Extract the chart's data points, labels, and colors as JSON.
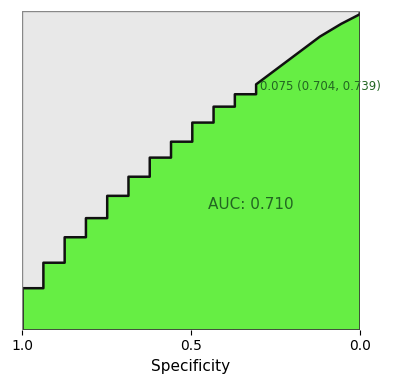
{
  "title": "",
  "xlabel": "Specificity",
  "ylabel": "",
  "auc": 0.71,
  "annotation_text": "0.075 (0.704, 0.739)",
  "auc_text": "AUC: 0.710",
  "roc_color": "#66ee44",
  "bg_color": "#e8e8e8",
  "outer_bg": "#ffffff",
  "line_color": "#111111",
  "grid_color_blue": "#9999dd",
  "grid_color_pink": "#ee9999",
  "text_color": "#226622",
  "xlim": [
    1.0,
    0.0
  ],
  "ylim": [
    0.0,
    1.0
  ],
  "xticks": [
    1.0,
    0.5,
    0.0
  ],
  "blue_grid": [
    0.0,
    0.25,
    0.5,
    0.75,
    1.0
  ],
  "pink_grid": [
    0.125,
    0.375,
    0.625,
    0.875
  ],
  "annotation_spec": 0.296,
  "annotation_tpr": 0.739,
  "auc_label_spec": 0.45,
  "auc_label_tpr": 0.38,
  "roc_specificity": [
    1.0,
    1.0,
    0.937,
    0.937,
    0.874,
    0.874,
    0.811,
    0.811,
    0.748,
    0.748,
    0.685,
    0.685,
    0.622,
    0.622,
    0.559,
    0.559,
    0.496,
    0.496,
    0.433,
    0.433,
    0.37,
    0.37,
    0.307,
    0.307,
    0.307,
    0.244,
    0.244,
    0.181,
    0.181,
    0.118,
    0.118,
    0.055,
    0.055,
    0.0,
    0.0
  ],
  "roc_sensitivity": [
    0.0,
    0.13,
    0.13,
    0.21,
    0.21,
    0.29,
    0.29,
    0.35,
    0.35,
    0.42,
    0.42,
    0.48,
    0.48,
    0.54,
    0.54,
    0.59,
    0.59,
    0.65,
    0.65,
    0.7,
    0.7,
    0.739,
    0.739,
    0.77,
    0.77,
    0.82,
    0.82,
    0.87,
    0.87,
    0.92,
    0.92,
    0.96,
    0.96,
    0.99,
    1.0
  ]
}
